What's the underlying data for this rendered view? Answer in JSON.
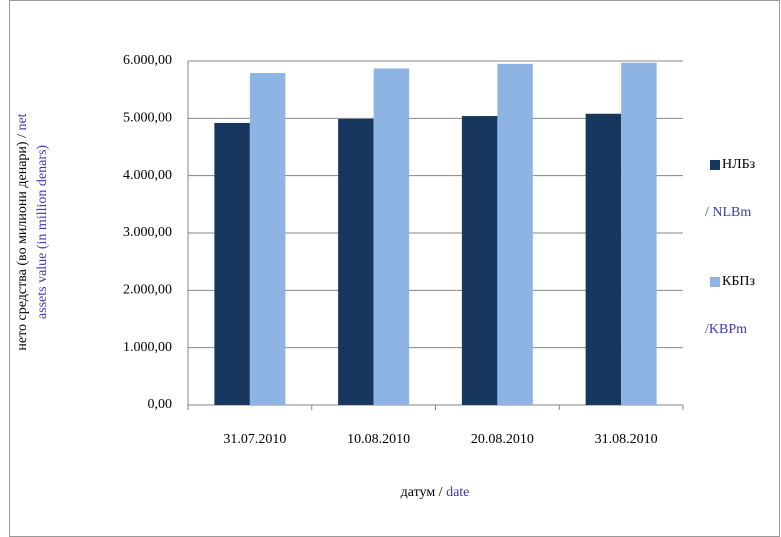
{
  "chart_data": {
    "type": "bar",
    "categories": [
      "31.07.2010",
      "10.08.2010",
      "20.08.2010",
      "31.08.2010"
    ],
    "series": [
      {
        "name": "НЛБз",
        "name_en": "/ NLBm",
        "color": "#17375e",
        "values": [
          4920,
          4990,
          5040,
          5080
        ]
      },
      {
        "name": "КБПз",
        "name_en": "/KBPm",
        "color": "#8eb4e3",
        "values": [
          5790,
          5870,
          5950,
          5970
        ]
      }
    ],
    "ylabel": [
      "нето средства (во милиони денари) / ",
      "net",
      "assets value  (in million denars)"
    ],
    "xlabel": [
      "датум  / ",
      "date"
    ],
    "ylim": [
      0,
      6000
    ],
    "yticks": [
      {
        "value": 0,
        "label": "0,00"
      },
      {
        "value": 1000,
        "label": "1.000,00"
      },
      {
        "value": 2000,
        "label": "2.000,00"
      },
      {
        "value": 3000,
        "label": "3.000,00"
      },
      {
        "value": 4000,
        "label": "4.000,00"
      },
      {
        "value": 5000,
        "label": "5.000,00"
      },
      {
        "value": 6000,
        "label": "6.000,00"
      }
    ],
    "grid": true,
    "legend": "right"
  }
}
